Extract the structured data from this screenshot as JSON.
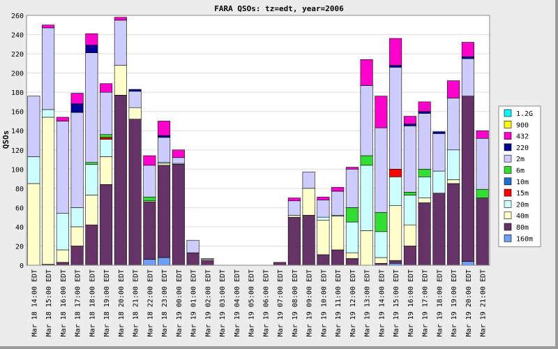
{
  "chart_data": {
    "type": "bar",
    "stacked": true,
    "title": "FARA QSOs: tz=edt, year=2006",
    "xlabel": "",
    "ylabel": "QSOs",
    "ylim": [
      0,
      260
    ],
    "yticks": [
      0,
      20,
      40,
      60,
      80,
      100,
      120,
      140,
      160,
      180,
      200,
      220,
      240,
      260
    ],
    "grid": true,
    "legend_position": "right",
    "categories": [
      "Mar 18 14:00 EDT",
      "Mar 18 15:00 EDT",
      "Mar 18 16:00 EDT",
      "Mar 18 17:00 EDT",
      "Mar 18 18:00 EDT",
      "Mar 18 19:00 EDT",
      "Mar 18 20:00 EDT",
      "Mar 18 21:00 EDT",
      "Mar 18 22:00 EDT",
      "Mar 18 23:00 EDT",
      "Mar 19 00:00 EDT",
      "Mar 19 01:00 EDT",
      "Mar 19 02:00 EDT",
      "Mar 19 03:00 EDT",
      "Mar 19 04:00 EDT",
      "Mar 19 05:00 EDT",
      "Mar 19 06:00 EDT",
      "Mar 19 07:00 EDT",
      "Mar 19 08:00 EDT",
      "Mar 19 09:00 EDT",
      "Mar 19 10:00 EDT",
      "Mar 19 11:00 EDT",
      "Mar 19 12:00 EDT",
      "Mar 19 13:00 EDT",
      "Mar 19 14:00 EDT",
      "Mar 19 15:00 EDT",
      "Mar 19 16:00 EDT",
      "Mar 19 17:00 EDT",
      "Mar 19 18:00 EDT",
      "Mar 19 19:00 EDT",
      "Mar 19 20:00 EDT",
      "Mar 19 21:00 EDT"
    ],
    "series": [
      {
        "name": "160m",
        "color": "#6f9ef5",
        "values": [
          0,
          0,
          0,
          0,
          0,
          0,
          0,
          0,
          6,
          8,
          0,
          0,
          0,
          0,
          0,
          0,
          0,
          0,
          0,
          0,
          0,
          0,
          0,
          0,
          0,
          2,
          0,
          0,
          0,
          0,
          4,
          0
        ]
      },
      {
        "name": "80m",
        "color": "#663366",
        "values": [
          0,
          1,
          3,
          20,
          42,
          84,
          177,
          152,
          60,
          96,
          105,
          13,
          5,
          0,
          0,
          0,
          0,
          3,
          50,
          52,
          11,
          16,
          7,
          0,
          2,
          3,
          20,
          65,
          75,
          85,
          172,
          70
        ]
      },
      {
        "name": "40m",
        "color": "#ffffcc",
        "values": [
          85,
          153,
          13,
          20,
          31,
          29,
          31,
          12,
          1,
          2,
          0,
          0,
          1,
          0,
          0,
          0,
          0,
          0,
          2,
          28,
          36,
          35,
          6,
          36,
          6,
          57,
          22,
          5,
          0,
          4,
          0,
          0
        ]
      },
      {
        "name": "20m",
        "color": "#ccffff",
        "values": [
          28,
          8,
          38,
          20,
          32,
          18,
          0,
          0,
          0,
          1,
          1,
          0,
          0,
          0,
          0,
          0,
          0,
          0,
          0,
          0,
          3,
          1,
          32,
          68,
          27,
          30,
          31,
          22,
          23,
          31,
          0,
          0
        ]
      },
      {
        "name": "15m",
        "color": "#ff0000",
        "values": [
          0,
          0,
          0,
          0,
          0,
          2,
          0,
          0,
          0,
          0,
          0,
          0,
          0,
          0,
          0,
          0,
          0,
          0,
          0,
          0,
          0,
          0,
          0,
          0,
          0,
          8,
          0,
          0,
          0,
          0,
          0,
          0
        ]
      },
      {
        "name": "10m",
        "color": "#1f6fd1",
        "values": [
          0,
          0,
          0,
          0,
          0,
          0,
          0,
          0,
          0,
          0,
          0,
          0,
          0,
          0,
          0,
          0,
          0,
          0,
          0,
          0,
          0,
          0,
          0,
          0,
          0,
          0,
          0,
          0,
          0,
          0,
          0,
          0
        ]
      },
      {
        "name": "6m",
        "color": "#33dd33",
        "values": [
          0,
          0,
          0,
          0,
          2,
          3,
          0,
          0,
          4,
          0,
          0,
          0,
          0,
          0,
          0,
          0,
          0,
          0,
          0,
          0,
          0,
          0,
          15,
          10,
          20,
          0,
          3,
          8,
          0,
          0,
          0,
          9
        ]
      },
      {
        "name": "2m",
        "color": "#ccccff",
        "values": [
          63,
          85,
          96,
          99,
          114,
          44,
          47,
          17,
          33,
          26,
          6,
          13,
          1,
          0,
          0,
          0,
          0,
          0,
          15,
          17,
          18,
          25,
          40,
          73,
          88,
          106,
          69,
          58,
          39,
          54,
          39,
          53
        ]
      },
      {
        "name": "220",
        "color": "#000099",
        "values": [
          0,
          0,
          0,
          9,
          8,
          0,
          0,
          2,
          0,
          2,
          0,
          0,
          0,
          0,
          0,
          0,
          0,
          0,
          0,
          0,
          0,
          0,
          0,
          0,
          0,
          2,
          2,
          2,
          2,
          0,
          2,
          0
        ]
      },
      {
        "name": "432",
        "color": "#ff00cc",
        "values": [
          0,
          3,
          4,
          11,
          12,
          9,
          3,
          0,
          10,
          15,
          8,
          0,
          0,
          0,
          0,
          0,
          0,
          0,
          3,
          0,
          3,
          4,
          2,
          27,
          33,
          28,
          8,
          10,
          0,
          18,
          15,
          8
        ]
      },
      {
        "name": "900",
        "color": "#ffff00",
        "values": [
          0,
          0,
          0,
          0,
          0,
          0,
          0,
          0,
          0,
          0,
          0,
          0,
          0,
          0,
          0,
          0,
          0,
          0,
          0,
          0,
          0,
          0,
          0,
          0,
          0,
          0,
          0,
          0,
          0,
          0,
          0,
          0
        ]
      },
      {
        "name": "1.2G",
        "color": "#00ffff",
        "values": [
          0,
          0,
          0,
          0,
          0,
          0,
          0,
          0,
          0,
          0,
          0,
          0,
          0,
          0,
          0,
          0,
          0,
          0,
          0,
          0,
          0,
          0,
          0,
          0,
          0,
          0,
          0,
          0,
          0,
          0,
          0,
          0
        ]
      }
    ]
  },
  "colors": {
    "background": "#ececec",
    "plot_background": "#ffffff",
    "grid": "#dddddd"
  }
}
